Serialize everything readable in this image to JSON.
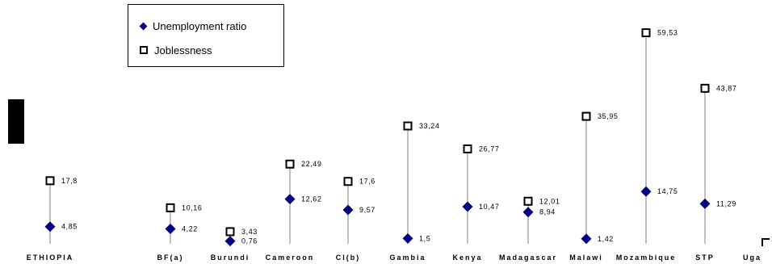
{
  "chart_data": {
    "type": "scatter",
    "categories": [
      "ETHIOPIA",
      "BF(a)",
      "Burundi",
      "Cameroon",
      "CI(b)",
      "Gambia",
      "Kenya",
      "Madagascar",
      "Malawi",
      "Mozambique",
      "STP",
      "Uganda"
    ],
    "category_display": [
      "ETHIOPIA",
      "BF(a)",
      "Burundi",
      "Cameroon",
      "CI(b)",
      "Gambia",
      "Kenya",
      "Madagascar",
      "Malawi",
      "Mozambique",
      "STP",
      "Uga"
    ],
    "series": [
      {
        "name": "Unemployment ratio",
        "marker": "diamond",
        "color": "#000080",
        "values": [
          4.85,
          4.22,
          0.76,
          12.62,
          9.57,
          1.5,
          10.47,
          8.94,
          1.42,
          14.75,
          11.29,
          null
        ],
        "labels": [
          "4,85",
          "4,22",
          "0,76",
          "12,62",
          "9,57",
          "1,5",
          "10,47",
          "8,94",
          "1,42",
          "14,75",
          "11,29",
          ""
        ]
      },
      {
        "name": "Joblessness",
        "marker": "square",
        "color": "#000000",
        "values": [
          17.8,
          10.16,
          3.43,
          22.49,
          17.6,
          33.24,
          26.77,
          12.01,
          35.95,
          59.53,
          43.87,
          null
        ],
        "labels": [
          "17,8",
          "10,16",
          "3,43",
          "22,49",
          "17,6",
          "33,24",
          "26,77",
          "12,01",
          "35,95",
          "59,53",
          "43,87",
          ""
        ]
      }
    ],
    "ylim": [
      0,
      60
    ],
    "grid": false,
    "legend_position": "top-left",
    "title": "",
    "xlabel": "",
    "ylabel": ""
  }
}
